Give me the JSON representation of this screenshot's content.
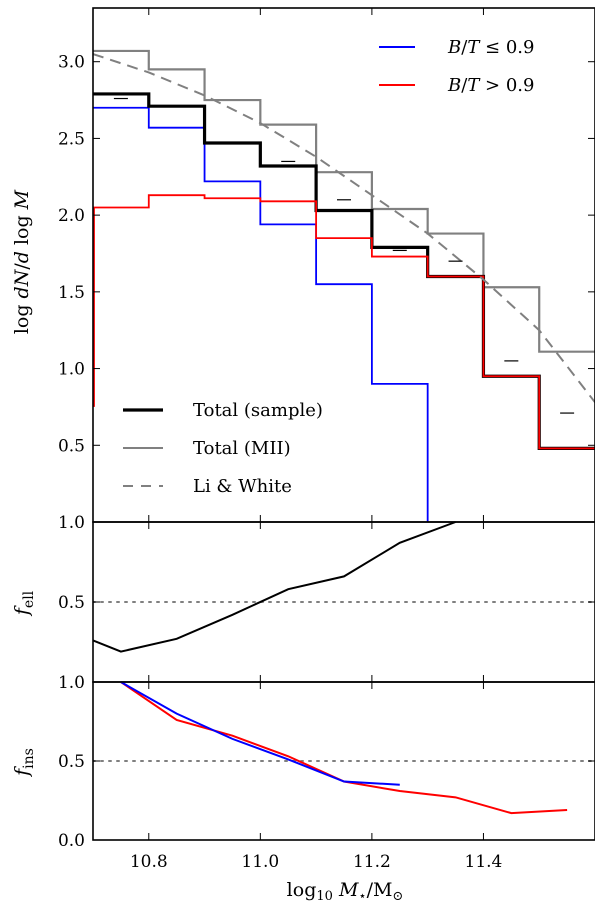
{
  "chart_data": [
    {
      "type": "line",
      "panel": "top",
      "ylabel": "log dN/d log M",
      "xlim": [
        10.7,
        11.6
      ],
      "ylim": [
        0.0,
        3.35
      ],
      "yticks": [
        {
          "v": 0.5,
          "label": "0.5"
        },
        {
          "v": 1.0,
          "label": "1.0"
        },
        {
          "v": 1.5,
          "label": "1.5"
        },
        {
          "v": 2.0,
          "label": "2.0"
        },
        {
          "v": 2.5,
          "label": "2.5"
        },
        {
          "v": 3.0,
          "label": "3.0"
        }
      ],
      "series": [
        {
          "key": "mii",
          "name": "Total (MII)",
          "style": "step",
          "color": "#808080",
          "width": 2.2,
          "edges": [
            10.7,
            10.8,
            10.9,
            11.0,
            11.1,
            11.2,
            11.3,
            11.4,
            11.5,
            11.6
          ],
          "values": [
            3.07,
            2.95,
            2.75,
            2.59,
            2.28,
            2.04,
            1.88,
            1.53,
            1.11
          ]
        },
        {
          "key": "bt_low",
          "name": "B/T ≤ 0.9",
          "style": "step",
          "color": "#0000ff",
          "width": 1.8,
          "edges": [
            10.7,
            10.8,
            10.9,
            11.0,
            11.1,
            11.2,
            11.3
          ],
          "values": [
            2.7,
            2.57,
            2.22,
            1.94,
            1.55,
            0.9
          ],
          "drop_to": 0.0
        },
        {
          "key": "total_sample",
          "name": "Total (sample)",
          "style": "step",
          "color": "#000000",
          "width": 3.2,
          "edges": [
            10.7,
            10.8,
            10.9,
            11.0,
            11.1,
            11.2,
            11.3,
            11.4,
            11.5,
            11.6
          ],
          "values": [
            2.79,
            2.71,
            2.47,
            2.32,
            2.03,
            1.79,
            1.6,
            0.95,
            0.48
          ]
        },
        {
          "key": "bt_high",
          "name": "B/T > 0.9",
          "style": "step",
          "color": "#ff0000",
          "width": 1.8,
          "edges": [
            10.7,
            10.8,
            10.9,
            11.0,
            11.1,
            11.2,
            11.3,
            11.4,
            11.5,
            11.6
          ],
          "values": [
            2.05,
            2.13,
            2.11,
            2.09,
            1.85,
            1.73,
            1.6,
            0.95,
            0.48
          ]
        },
        {
          "key": "li_white",
          "name": "Li & White",
          "style": "dashed",
          "color": "#808080",
          "width": 2.0,
          "x": [
            10.7,
            10.8,
            10.9,
            11.0,
            11.1,
            11.2,
            11.3,
            11.4,
            11.5,
            11.6
          ],
          "y": [
            3.05,
            2.93,
            2.78,
            2.6,
            2.38,
            2.13,
            1.88,
            1.58,
            1.25,
            0.78
          ]
        },
        {
          "key": "markers",
          "name": "",
          "style": "dash-markers",
          "color": "#000000",
          "width": 1.2,
          "x": [
            10.75,
            11.15,
            11.25,
            11.35,
            11.45,
            11.55
          ],
          "y": [
            2.76,
            2.1,
            1.77,
            1.7,
            1.05,
            0.71
          ]
        }
      ],
      "extra_markers": [
        {
          "x": 11.05,
          "y": 2.35
        }
      ],
      "legend_top": {
        "placement": "top-right",
        "entries": [
          {
            "label": "B/T ≤ 0.9",
            "color": "#0000ff"
          },
          {
            "label": "B/T > 0.9",
            "color": "#ff0000"
          }
        ]
      },
      "legend_bottom": {
        "placement": "bottom-left",
        "entries": [
          {
            "label": "Total (sample)",
            "color": "#000000",
            "style": "thick"
          },
          {
            "label": "Total (MII)",
            "color": "#808080",
            "style": "solid"
          },
          {
            "label": "Li & White",
            "color": "#808080",
            "style": "dashed"
          }
        ]
      }
    },
    {
      "type": "line",
      "panel": "middle",
      "ylabel": "f_ell",
      "xlim": [
        10.7,
        11.6
      ],
      "ylim": [
        0.0,
        1.0
      ],
      "yticks": [
        {
          "v": 0.5,
          "label": "0.5"
        },
        {
          "v": 1.0,
          "label": "1.0"
        }
      ],
      "reference_line": 0.5,
      "series": [
        {
          "key": "fell",
          "name": "",
          "color": "#000000",
          "width": 2.0,
          "x": [
            10.7,
            10.75,
            10.85,
            10.95,
            11.05,
            11.15,
            11.25,
            11.35
          ],
          "y": [
            0.26,
            0.19,
            0.27,
            0.42,
            0.58,
            0.66,
            0.87,
            1.0
          ]
        }
      ]
    },
    {
      "type": "line",
      "panel": "bottom",
      "ylabel": "f_ins",
      "xlabel": "log10 M*/M⊙",
      "xlim": [
        10.7,
        11.6
      ],
      "ylim": [
        0.0,
        1.0
      ],
      "yticks": [
        {
          "v": 0.0,
          "label": "0.0"
        },
        {
          "v": 0.5,
          "label": "0.5"
        },
        {
          "v": 1.0,
          "label": "1.0"
        }
      ],
      "xticks": [
        {
          "v": 10.8,
          "label": "10.8"
        },
        {
          "v": 11.0,
          "label": "11.0"
        },
        {
          "v": 11.2,
          "label": "11.2"
        },
        {
          "v": 11.4,
          "label": "11.4"
        }
      ],
      "reference_line": 0.5,
      "series": [
        {
          "key": "fins_red",
          "name": "",
          "color": "#ff0000",
          "width": 2.0,
          "x": [
            10.75,
            10.85,
            10.95,
            11.05,
            11.15,
            11.25,
            11.35,
            11.45,
            11.55
          ],
          "y": [
            1.0,
            0.76,
            0.66,
            0.53,
            0.37,
            0.31,
            0.27,
            0.17,
            0.19
          ]
        },
        {
          "key": "fins_blue",
          "name": "",
          "color": "#0000ff",
          "width": 2.0,
          "x": [
            10.75,
            10.85,
            10.95,
            11.05,
            11.15,
            11.25
          ],
          "y": [
            1.0,
            0.8,
            0.64,
            0.51,
            0.37,
            0.35
          ]
        }
      ]
    }
  ]
}
